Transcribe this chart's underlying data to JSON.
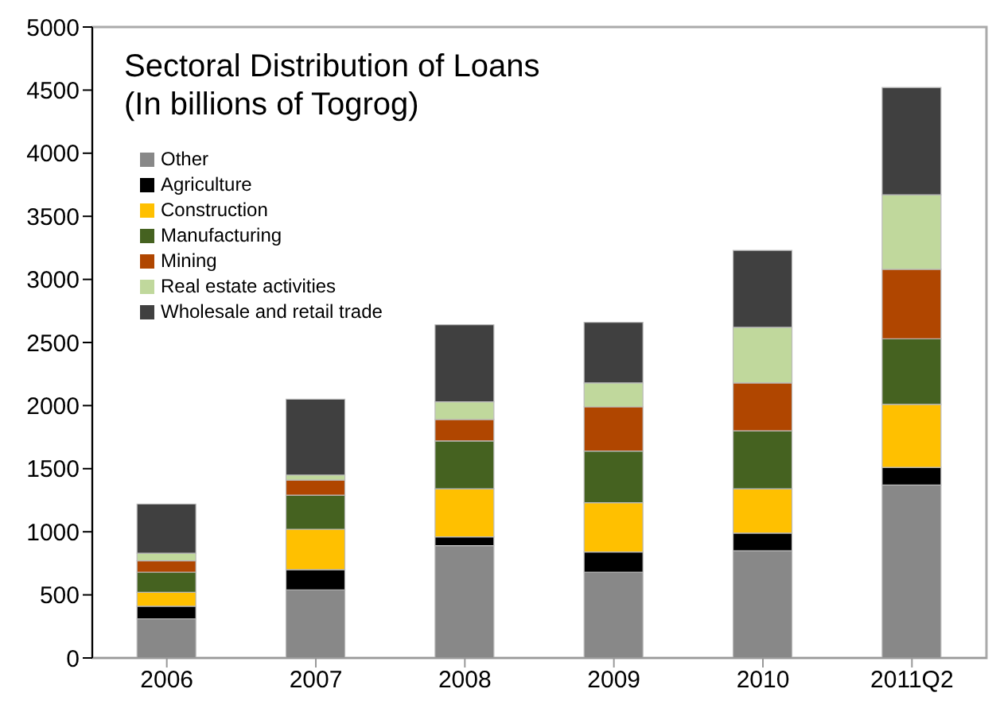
{
  "chart_data": {
    "type": "bar",
    "title": "Sectoral Distribution of Loans\n(In billions of Togrog)",
    "categories": [
      "2006",
      "2007",
      "2008",
      "2009",
      "2010",
      "2011Q2"
    ],
    "stacked": true,
    "legend": "top left",
    "grid": false,
    "ylim": [
      0,
      5000
    ],
    "yticks": [
      0,
      500,
      1000,
      1500,
      2000,
      2500,
      3000,
      3500,
      4000,
      4500,
      5000
    ],
    "series": [
      {
        "name": "Other",
        "color": "#888888",
        "values": [
          310,
          540,
          890,
          680,
          850,
          1370
        ]
      },
      {
        "name": "Agriculture",
        "color": "#000000",
        "values": [
          100,
          160,
          70,
          160,
          140,
          140
        ]
      },
      {
        "name": "Construction",
        "color": "#ffc000",
        "values": [
          110,
          320,
          380,
          390,
          350,
          500
        ]
      },
      {
        "name": "Manufacturing",
        "color": "#456220",
        "values": [
          160,
          270,
          380,
          410,
          460,
          520
        ]
      },
      {
        "name": "Mining",
        "color": "#b04600",
        "values": [
          90,
          120,
          170,
          350,
          380,
          550
        ]
      },
      {
        "name": "Real estate activities",
        "color": "#c0d89c",
        "values": [
          60,
          40,
          140,
          190,
          440,
          590
        ]
      },
      {
        "name": "Wholesale and retail trade",
        "color": "#404040",
        "values": [
          390,
          600,
          610,
          480,
          610,
          850
        ]
      }
    ]
  }
}
